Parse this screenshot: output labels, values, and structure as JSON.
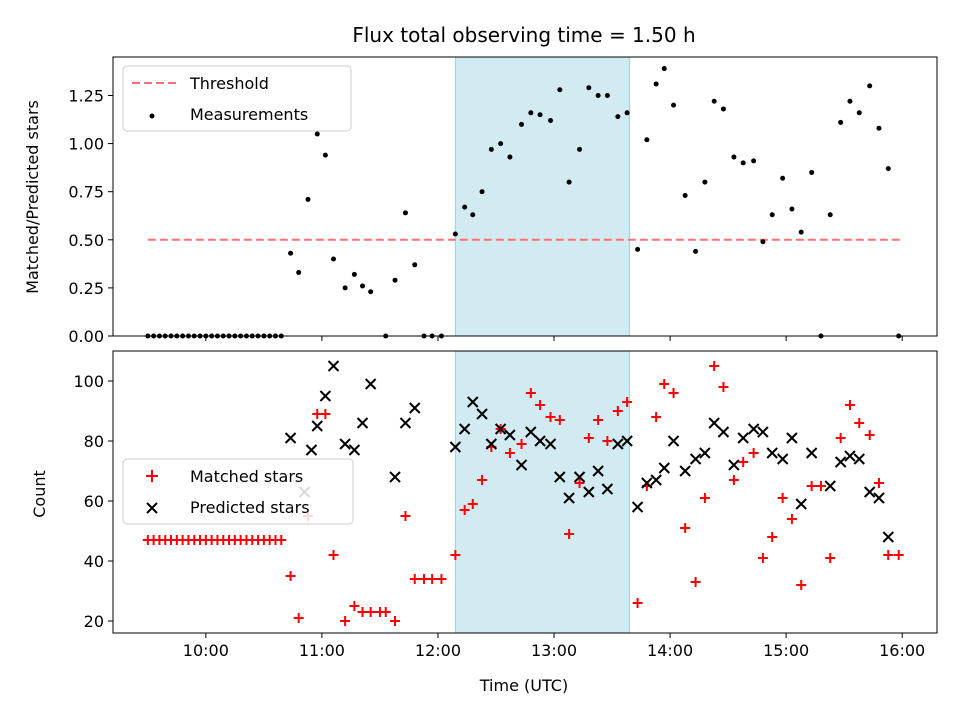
{
  "chart_data": [
    {
      "type": "scatter",
      "title": "Flux total observing time = 1.50 h",
      "xlabel": "",
      "ylabel": "Matched/Predicted stars",
      "x_unit": "hours UTC",
      "xlim": [
        9.2,
        16.3
      ],
      "ylim": [
        0,
        1.45
      ],
      "yticks": [
        0,
        0.25,
        0.5,
        0.75,
        1.0,
        1.25
      ],
      "ytick_labels": [
        "0.00",
        "0.25",
        "0.50",
        "0.75",
        "1.00",
        "1.25"
      ],
      "grid": false,
      "legend_position": "top-left",
      "shaded_region": {
        "x0": 12.15,
        "x1": 13.65,
        "color": "#add8e6"
      },
      "series": [
        {
          "name": "Threshold",
          "kind": "dashed-line",
          "color": "#ff7070",
          "x": [
            9.5,
            16.0
          ],
          "y": [
            0.5,
            0.5
          ]
        },
        {
          "name": "Measurements",
          "kind": "scatter",
          "marker": "dot",
          "color": "#000000",
          "x": [
            9.5,
            9.55,
            9.6,
            9.65,
            9.7,
            9.75,
            9.8,
            9.85,
            9.9,
            9.95,
            10.0,
            10.05,
            10.1,
            10.15,
            10.2,
            10.25,
            10.3,
            10.35,
            10.4,
            10.45,
            10.5,
            10.55,
            10.6,
            10.65,
            10.73,
            10.8,
            10.88,
            10.96,
            11.03,
            11.1,
            11.2,
            11.28,
            11.35,
            11.42,
            11.55,
            11.63,
            11.72,
            11.8,
            11.88,
            11.95,
            12.03,
            12.15,
            12.23,
            12.3,
            12.38,
            12.46,
            12.54,
            12.62,
            12.72,
            12.8,
            12.88,
            12.97,
            13.05,
            13.13,
            13.22,
            13.3,
            13.38,
            13.46,
            13.55,
            13.63,
            13.72,
            13.8,
            13.88,
            13.95,
            14.03,
            14.13,
            14.22,
            14.3,
            14.38,
            14.46,
            14.55,
            14.63,
            14.72,
            14.8,
            14.88,
            14.97,
            15.05,
            15.13,
            15.22,
            15.3,
            15.38,
            15.47,
            15.55,
            15.63,
            15.72,
            15.8,
            15.88,
            15.97
          ],
          "y": [
            0,
            0,
            0,
            0,
            0,
            0,
            0,
            0,
            0,
            0,
            0,
            0,
            0,
            0,
            0,
            0,
            0,
            0,
            0,
            0,
            0,
            0,
            0,
            0,
            0.43,
            0.33,
            0.71,
            1.05,
            0.94,
            0.4,
            0.25,
            0.32,
            0.26,
            0.23,
            0,
            0.29,
            0.64,
            0.37,
            0,
            0,
            0,
            0.53,
            0.67,
            0.63,
            0.75,
            0.97,
            1.0,
            0.93,
            1.1,
            1.16,
            1.15,
            1.12,
            1.28,
            0.8,
            0.97,
            1.29,
            1.25,
            1.25,
            1.14,
            1.16,
            0.45,
            1.02,
            1.31,
            1.39,
            1.2,
            0.73,
            0.44,
            0.8,
            1.22,
            1.18,
            0.93,
            0.9,
            0.91,
            0.49,
            0.63,
            0.82,
            0.66,
            0.54,
            0.85,
            0,
            0.63,
            1.11,
            1.22,
            1.16,
            1.3,
            1.08,
            0.87,
            0
          ]
        }
      ]
    },
    {
      "type": "scatter",
      "title": "",
      "xlabel": "Time (UTC)",
      "ylabel": "Count",
      "x_unit": "hours UTC",
      "xlim": [
        9.2,
        16.3
      ],
      "ylim": [
        16,
        110
      ],
      "xticks": [
        10,
        11,
        12,
        13,
        14,
        15,
        16
      ],
      "xtick_labels": [
        "10:00",
        "11:00",
        "12:00",
        "13:00",
        "14:00",
        "15:00",
        "16:00"
      ],
      "yticks": [
        20,
        40,
        60,
        80,
        100
      ],
      "ytick_labels": [
        "20",
        "40",
        "60",
        "80",
        "100"
      ],
      "grid": false,
      "legend_position": "center-left",
      "shaded_region": {
        "x0": 12.15,
        "x1": 13.65,
        "color": "#add8e6"
      },
      "series": [
        {
          "name": "Matched stars",
          "kind": "scatter",
          "marker": "plus",
          "color": "#ff0000",
          "x": [
            9.5,
            9.55,
            9.6,
            9.65,
            9.7,
            9.75,
            9.8,
            9.85,
            9.9,
            9.95,
            10.0,
            10.05,
            10.1,
            10.15,
            10.2,
            10.25,
            10.3,
            10.35,
            10.4,
            10.45,
            10.5,
            10.55,
            10.6,
            10.65,
            10.73,
            10.8,
            10.88,
            10.96,
            11.03,
            11.1,
            11.2,
            11.28,
            11.35,
            11.42,
            11.5,
            11.55,
            11.63,
            11.72,
            11.8,
            11.88,
            11.95,
            12.03,
            12.15,
            12.23,
            12.3,
            12.38,
            12.46,
            12.54,
            12.62,
            12.72,
            12.8,
            12.88,
            12.97,
            13.05,
            13.13,
            13.22,
            13.3,
            13.38,
            13.46,
            13.55,
            13.63,
            13.72,
            13.8,
            13.88,
            13.95,
            14.03,
            14.13,
            14.22,
            14.3,
            14.38,
            14.46,
            14.55,
            14.63,
            14.72,
            14.8,
            14.88,
            14.97,
            15.05,
            15.13,
            15.22,
            15.3,
            15.38,
            15.47,
            15.55,
            15.63,
            15.72,
            15.8,
            15.88,
            15.97
          ],
          "y": [
            47,
            47,
            47,
            47,
            47,
            47,
            47,
            47,
            47,
            47,
            47,
            47,
            47,
            47,
            47,
            47,
            47,
            47,
            47,
            47,
            47,
            47,
            47,
            47,
            35,
            21,
            55,
            89,
            89,
            42,
            20,
            25,
            23,
            23,
            23,
            23,
            20,
            55,
            34,
            34,
            34,
            34,
            42,
            57,
            59,
            67,
            78,
            84,
            76,
            79,
            96,
            92,
            88,
            87,
            49,
            66,
            81,
            87,
            80,
            90,
            93,
            26,
            65,
            88,
            99,
            96,
            51,
            33,
            61,
            105,
            98,
            67,
            73,
            76,
            41,
            48,
            61,
            54,
            32,
            65,
            65,
            41,
            81,
            92,
            86,
            82,
            66,
            42,
            42
          ]
        },
        {
          "name": "Predicted stars",
          "kind": "scatter",
          "marker": "x",
          "color": "#000000",
          "x": [
            10.73,
            10.85,
            10.91,
            10.96,
            11.03,
            11.1,
            11.2,
            11.28,
            11.35,
            11.42,
            11.63,
            11.72,
            11.8,
            12.15,
            12.23,
            12.3,
            12.38,
            12.46,
            12.54,
            12.62,
            12.72,
            12.8,
            12.88,
            12.97,
            13.05,
            13.13,
            13.22,
            13.3,
            13.38,
            13.46,
            13.55,
            13.63,
            13.72,
            13.8,
            13.88,
            13.95,
            14.03,
            14.13,
            14.22,
            14.3,
            14.38,
            14.46,
            14.55,
            14.63,
            14.72,
            14.8,
            14.88,
            14.97,
            15.05,
            15.13,
            15.22,
            15.38,
            15.47,
            15.55,
            15.63,
            15.72,
            15.8,
            15.88
          ],
          "y": [
            81,
            63,
            77,
            85,
            95,
            105,
            79,
            77,
            86,
            99,
            68,
            86,
            91,
            78,
            84,
            93,
            89,
            79,
            84,
            82,
            72,
            83,
            80,
            79,
            68,
            61,
            68,
            63,
            70,
            64,
            79,
            80,
            58,
            66,
            67,
            71,
            80,
            70,
            74,
            76,
            86,
            83,
            72,
            81,
            84,
            83,
            76,
            74,
            81,
            59,
            76,
            65,
            73,
            75,
            74,
            63,
            61,
            48
          ]
        }
      ]
    }
  ]
}
